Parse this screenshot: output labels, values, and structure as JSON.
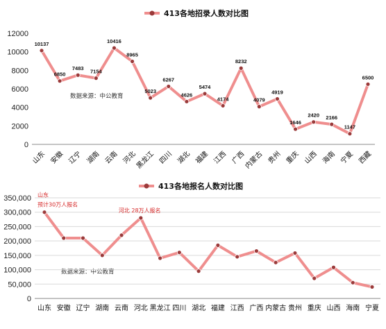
{
  "colors": {
    "line": "#ef8e8e",
    "marker": "#9b3a3a",
    "annotation": "#d62828",
    "grid": "#d9d9d9"
  },
  "chart_data": [
    {
      "type": "line",
      "title": "413各地招录人数对比图",
      "legend": "top-center",
      "grid": false,
      "ylim": [
        0,
        12000
      ],
      "yticks": [
        "0",
        "2000",
        "4000",
        "6000",
        "8000",
        "10000",
        "12000"
      ],
      "categories": [
        "山东",
        "安徽",
        "辽宁",
        "湖南",
        "云南",
        "河北",
        "黑龙江",
        "四川",
        "湖北",
        "福建",
        "江西",
        "广西",
        "内蒙古",
        "贵州",
        "重庆",
        "山西",
        "海南",
        "宁夏",
        "西藏"
      ],
      "values": [
        10137,
        6850,
        7483,
        7154,
        10416,
        8965,
        5023,
        6267,
        4626,
        5474,
        4174,
        8232,
        4079,
        4919,
        1646,
        2420,
        2166,
        1147,
        6500
      ],
      "value_labels": [
        "10137",
        "6850",
        "7483",
        "7154",
        "10416",
        "8965",
        "5023",
        "6267",
        "4626",
        "5474",
        "4174",
        "8232",
        "4079",
        "4919",
        "1646",
        "2420",
        "2166",
        "1147",
        "6500"
      ],
      "source_note": "数据来源：中公教育"
    },
    {
      "type": "line",
      "title": "413各地报名人数对比图",
      "legend": "top-center",
      "grid": true,
      "ylim": [
        0,
        350000
      ],
      "yticks": [
        "0",
        "50,000",
        "100,000",
        "150,000",
        "200,000",
        "250,000",
        "300,000",
        "350,000"
      ],
      "categories": [
        "山东",
        "安徽",
        "辽宁",
        "湖南",
        "云南",
        "河北",
        "黑龙江",
        "四川",
        "湖北",
        "福建",
        "江西",
        "广西",
        "内蒙古",
        "贵州",
        "重庆",
        "山西",
        "海南",
        "宁夏"
      ],
      "values": [
        300000,
        210000,
        210000,
        150000,
        220000,
        280000,
        140000,
        160000,
        95000,
        185000,
        145000,
        165000,
        125000,
        158000,
        70000,
        108000,
        55000,
        40000
      ],
      "annotations": [
        {
          "index": 0,
          "lines": [
            "山东",
            "预计30万人报名"
          ]
        },
        {
          "index": 5,
          "lines": [
            "河北  28万人报名"
          ]
        }
      ],
      "source_note": "数据来源：中公教育"
    }
  ]
}
